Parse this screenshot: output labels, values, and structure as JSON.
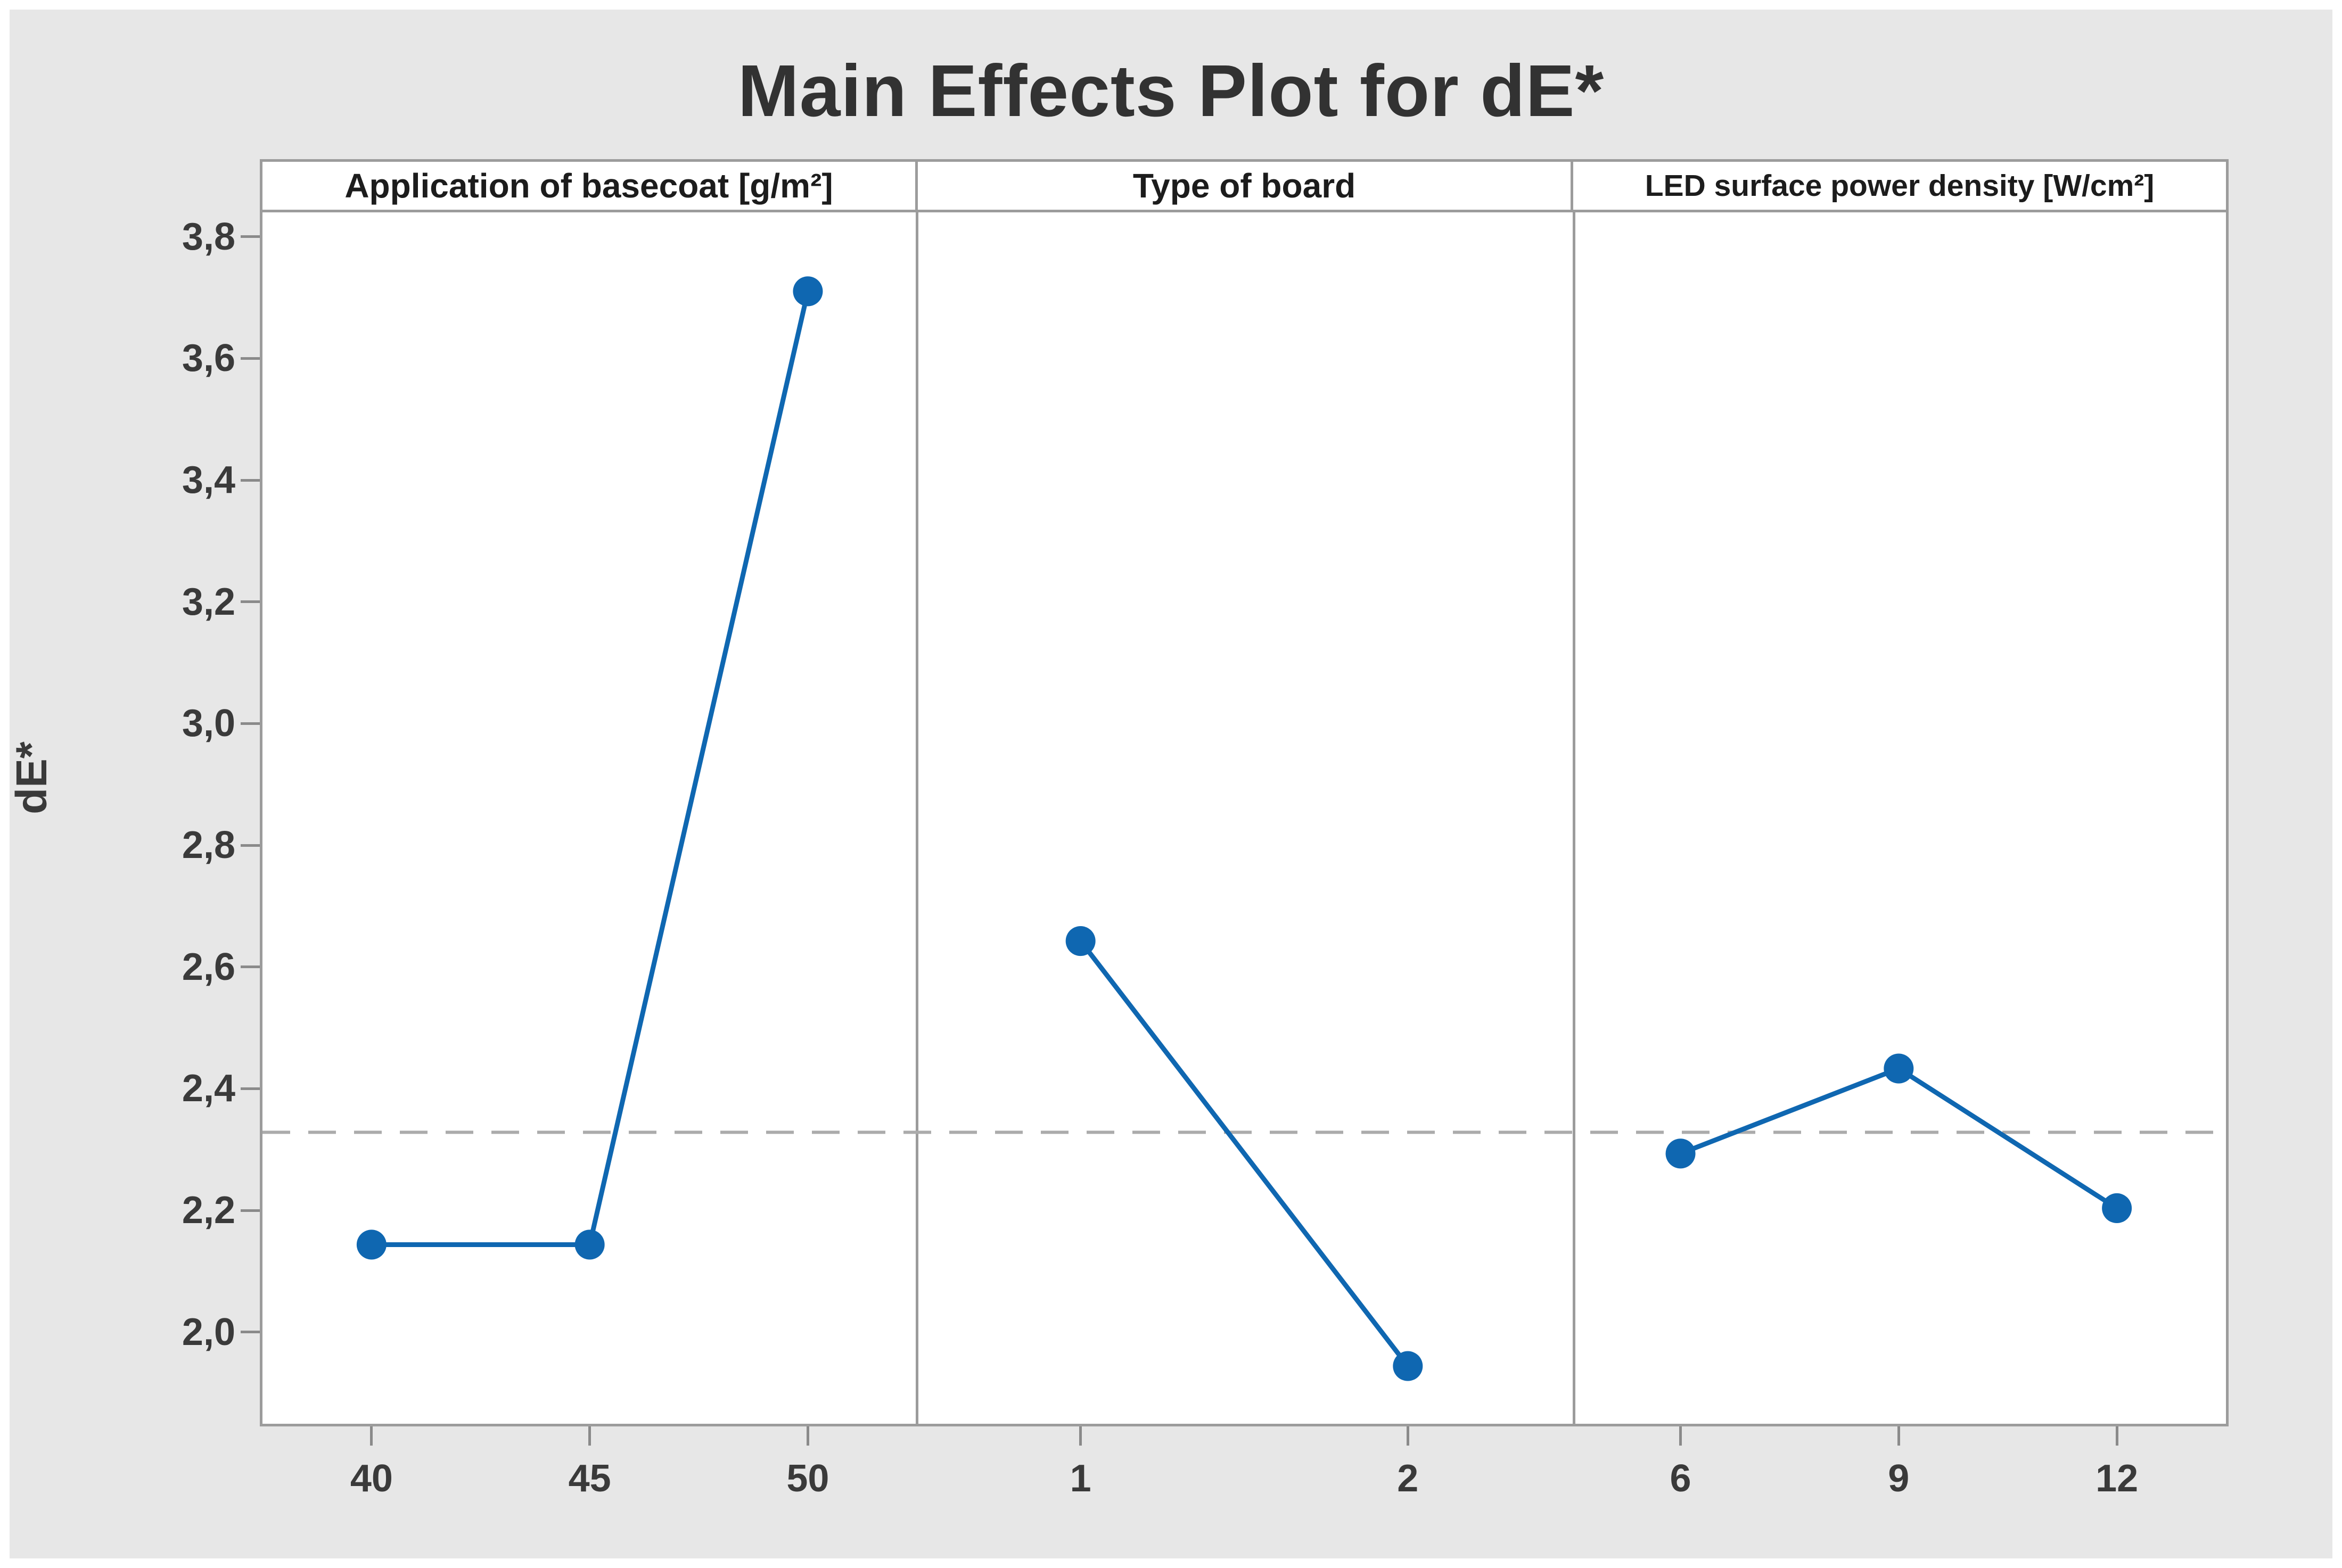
{
  "chart_data": {
    "type": "line",
    "title": "Main Effects Plot for dE*",
    "ylabel": "dE*",
    "xlabel": "",
    "ylim": [
      1.845,
      3.84
    ],
    "grid": false,
    "mean_line": {
      "value": 2.325,
      "style": "dashed"
    },
    "yticks": [
      {
        "value": 2.0,
        "label": "2,0"
      },
      {
        "value": 2.2,
        "label": "2,2"
      },
      {
        "value": 2.4,
        "label": "2,4"
      },
      {
        "value": 2.6,
        "label": "2,6"
      },
      {
        "value": 2.8,
        "label": "2,8"
      },
      {
        "value": 3.0,
        "label": "3,0"
      },
      {
        "value": 3.2,
        "label": "3,2"
      },
      {
        "value": 3.4,
        "label": "3,4"
      },
      {
        "value": 3.6,
        "label": "3,6"
      },
      {
        "value": 3.8,
        "label": "3,8"
      }
    ],
    "panels": [
      {
        "label": "Application of basecoat [g/m²]",
        "categories": [
          "40",
          "45",
          "50"
        ],
        "values": [
          2.14,
          2.14,
          3.71
        ]
      },
      {
        "label": "Type of board",
        "categories": [
          "1",
          "2"
        ],
        "values": [
          2.64,
          1.94
        ]
      },
      {
        "label": "LED surface power density [W/cm²]",
        "categories": [
          "6",
          "9",
          "12"
        ],
        "values": [
          2.29,
          2.43,
          2.2
        ]
      }
    ]
  },
  "colors": {
    "series_line": "#0F67B1",
    "marker": "#0F67B1",
    "mean_line": "#ABABAB",
    "plot_background": "#FFFFFF",
    "figure_background": "#E7E7E7",
    "panel_border": "#9C9C9C",
    "text": "#3a3a3a"
  }
}
